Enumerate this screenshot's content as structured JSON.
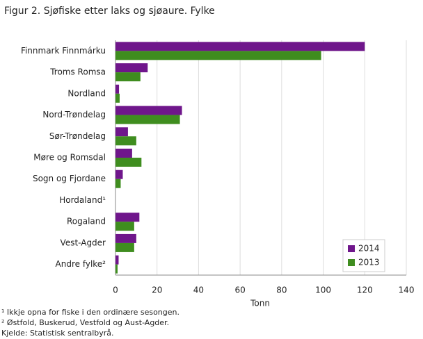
{
  "chart_data": {
    "type": "barh",
    "title": "Figur 2. Sjøfiske etter laks og sjøaure. Fylke",
    "categories": [
      "Finnmark Finnmárku",
      "Troms Romsa",
      "Nordland",
      "Nord-Trøndelag",
      "Sør-Trøndelag",
      "Møre og Romsdal",
      "Sogn og Fjordane",
      "Hordaland¹",
      "Rogaland",
      "Vest-Agder",
      "Andre fylke²"
    ],
    "series": [
      {
        "name": "2014",
        "color": "#6f168b",
        "values": [
          120,
          15.5,
          1.7,
          32,
          6,
          8,
          3.5,
          0,
          11.5,
          10,
          1.5
        ]
      },
      {
        "name": "2013",
        "color": "#3f8d1f",
        "values": [
          99,
          12,
          2,
          31,
          10,
          12.5,
          2.5,
          0,
          9,
          9,
          1
        ]
      }
    ],
    "xlabel": "Tonn",
    "xlim": [
      0,
      140
    ],
    "xticks": [
      0,
      20,
      40,
      60,
      80,
      100,
      120,
      140
    ],
    "grid": true,
    "legend": "lower right",
    "notes": [
      "¹ Ikkje opna for fiske i den ordinære sesongen.",
      "² Østfold, Buskerud, Vestfold og Aust-Agder.",
      "Kjelde: Statistisk sentralbyrå."
    ]
  }
}
